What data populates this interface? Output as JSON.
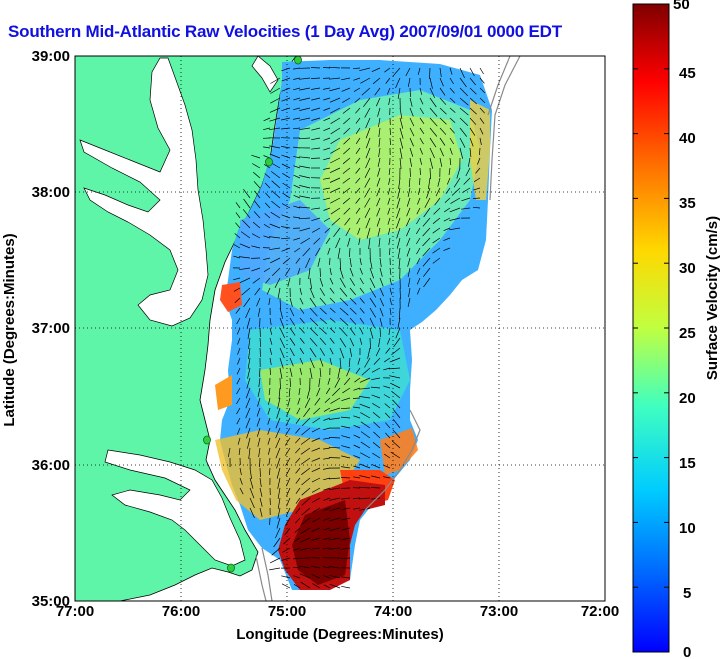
{
  "title": "Southern Mid-Atlantic Raw Velocities (1 Day Avg) 2007/09/01 0000 EDT",
  "x_axis": {
    "label": "Longitude (Degrees:Minutes)",
    "ticks": [
      "77:00",
      "76:00",
      "75:00",
      "74:00",
      "73:00",
      "72:00"
    ]
  },
  "y_axis": {
    "label": "Latitude (Degrees:Minutes)",
    "ticks": [
      "39:00",
      "38:00",
      "37:00",
      "36:00",
      "35:00"
    ]
  },
  "colorbar": {
    "label": "Surface Velocity (cm/s)",
    "ticks": [
      "50",
      "45",
      "40",
      "35",
      "30",
      "25",
      "20",
      "15",
      "10",
      "5",
      "0"
    ],
    "min": 0,
    "max": 50,
    "colormap": "jet"
  },
  "colors": {
    "land": "#5ff5a8",
    "title": "#1010e0",
    "station": "#2ecc40"
  },
  "grid": "dotted"
}
